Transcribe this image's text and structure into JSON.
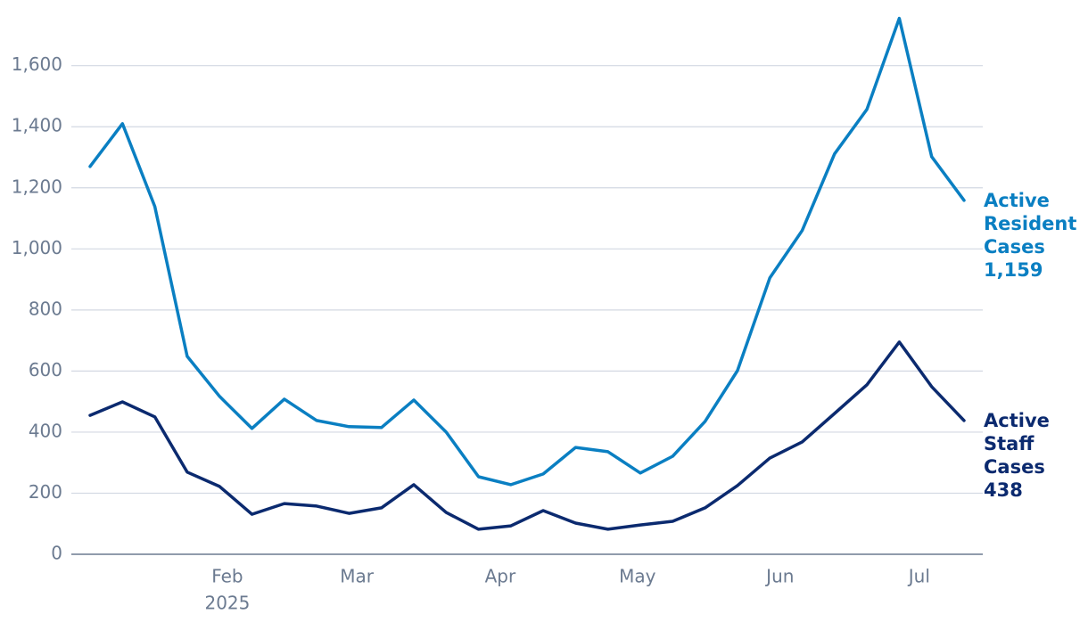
{
  "chart_data": {
    "type": "line",
    "x": [
      0,
      1,
      2,
      3,
      4,
      5,
      6,
      7,
      8,
      9,
      10,
      11,
      12,
      13,
      14,
      15,
      16,
      17,
      18,
      19,
      20,
      21,
      22,
      23,
      24,
      25,
      26,
      27
    ],
    "xlim": [
      -0.58,
      27.58
    ],
    "xticks": [
      {
        "value": 4.24,
        "label": "Feb"
      },
      {
        "value": 8.24,
        "label": "Mar"
      },
      {
        "value": 12.67,
        "label": "Apr"
      },
      {
        "value": 16.91,
        "label": "May"
      },
      {
        "value": 21.32,
        "label": "Jun"
      },
      {
        "value": 25.62,
        "label": "Jul"
      }
    ],
    "year_label": "2025",
    "ylim": [
      0,
      1780
    ],
    "yticks": [
      0,
      200,
      400,
      600,
      800,
      {
        "value": 1000,
        "label": "1,000"
      },
      {
        "value": 1200,
        "label": "1,200"
      },
      {
        "value": 1400,
        "label": "1,400"
      },
      {
        "value": 1600,
        "label": "1,600"
      }
    ],
    "grid": true,
    "series": [
      {
        "name": "Active Resident Cases",
        "color": "#0a7fc2",
        "values": [
          1270,
          1410,
          1139,
          648,
          517,
          412,
          508,
          438,
          418,
          415,
          505,
          400,
          254,
          228,
          263,
          350,
          336,
          266,
          321,
          435,
          601,
          905,
          1060,
          1311,
          1457,
          1755,
          1302,
          1159
        ],
        "value_label": "1,159"
      },
      {
        "name": "Active Staff Cases",
        "color": "#0b2a6f",
        "values": [
          455,
          499,
          450,
          269,
          222,
          131,
          166,
          158,
          134,
          152,
          228,
          137,
          82,
          93,
          143,
          102,
          82,
          96,
          108,
          152,
          225,
          315,
          368,
          461,
          555,
          695,
          549,
          438
        ],
        "value_label": "438"
      }
    ]
  }
}
